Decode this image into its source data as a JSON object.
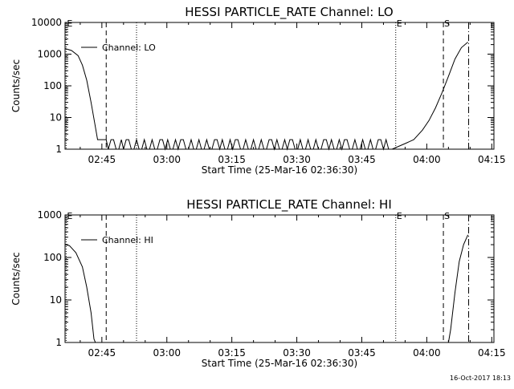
{
  "footer": {
    "timestamp": "16-Oct-2017 18:13"
  },
  "chart_data": [
    {
      "type": "line",
      "title": "HESSI PARTICLE_RATE Channel: LO",
      "xlabel": "Start Time (25-Mar-16 02:36:30)",
      "ylabel": "Counts/sec",
      "yscale": "log",
      "ylim": [
        1,
        10000
      ],
      "xlim": [
        "02:36:30",
        "04:15:30"
      ],
      "x_ticks": [
        "02:45",
        "03:00",
        "03:15",
        "03:30",
        "03:45",
        "04:00",
        "04:15"
      ],
      "y_ticks": [
        "1",
        "10",
        "100",
        "1000",
        "10000"
      ],
      "legend": {
        "label": "Channel: LO",
        "position": "top-left"
      },
      "markers": [
        {
          "label": "E",
          "time": "02:36:45",
          "style": "dotted"
        },
        {
          "label": "",
          "time": "02:46:00",
          "style": "dashed"
        },
        {
          "label": "",
          "time": "02:53:00",
          "style": "dotted"
        },
        {
          "label": "E",
          "time": "03:52:50",
          "style": "dotted"
        },
        {
          "label": "S",
          "time": "04:03:50",
          "style": "dashed"
        },
        {
          "label": "",
          "time": "04:09:40",
          "style": "dash-dot"
        }
      ],
      "series": [
        {
          "name": "Channel: LO",
          "points": [
            [
              "02:36:30",
              1500
            ],
            [
              "02:38:00",
              1300
            ],
            [
              "02:39:30",
              900
            ],
            [
              "02:40:30",
              450
            ],
            [
              "02:41:30",
              150
            ],
            [
              "02:42:30",
              30
            ],
            [
              "02:43:30",
              5
            ],
            [
              "02:44:00",
              2
            ],
            [
              "02:46:00",
              2
            ],
            [
              "02:46:30",
              1
            ],
            [
              "02:50:00",
              1
            ],
            [
              "03:52:00",
              1
            ],
            [
              "03:55:00",
              1.5
            ],
            [
              "03:57:00",
              2
            ],
            [
              "03:59:00",
              4
            ],
            [
              "04:00:30",
              8
            ],
            [
              "04:02:00",
              20
            ],
            [
              "04:03:30",
              60
            ],
            [
              "04:05:00",
              200
            ],
            [
              "04:06:30",
              700
            ],
            [
              "04:08:00",
              1600
            ],
            [
              "04:09:30",
              2400
            ]
          ]
        }
      ]
    },
    {
      "type": "line",
      "title": "HESSI PARTICLE_RATE Channel: HI",
      "xlabel": "Start Time (25-Mar-16 02:36:30)",
      "ylabel": "Counts/sec",
      "yscale": "log",
      "ylim": [
        1,
        1000
      ],
      "xlim": [
        "02:36:30",
        "04:15:30"
      ],
      "x_ticks": [
        "02:45",
        "03:00",
        "03:15",
        "03:30",
        "03:45",
        "04:00",
        "04:15"
      ],
      "y_ticks": [
        "1",
        "10",
        "100",
        "1000"
      ],
      "legend": {
        "label": "Channel: HI",
        "position": "top-left"
      },
      "markers": [
        {
          "label": "E",
          "time": "02:36:45",
          "style": "dotted"
        },
        {
          "label": "",
          "time": "02:46:00",
          "style": "dashed"
        },
        {
          "label": "",
          "time": "02:53:00",
          "style": "dotted"
        },
        {
          "label": "E",
          "time": "03:52:50",
          "style": "dotted"
        },
        {
          "label": "S",
          "time": "04:03:50",
          "style": "dashed"
        },
        {
          "label": "",
          "time": "04:09:40",
          "style": "dash-dot"
        }
      ],
      "series": [
        {
          "name": "Channel: HI",
          "points": [
            [
              "02:36:30",
              200
            ],
            [
              "02:37:30",
              190
            ],
            [
              "02:39:00",
              130
            ],
            [
              "02:40:30",
              60
            ],
            [
              "02:41:30",
              20
            ],
            [
              "02:42:30",
              5
            ],
            [
              "02:43:10",
              1.2
            ],
            [
              "02:43:30",
              1
            ],
            [
              "04:05:00",
              1
            ],
            [
              "04:05:30",
              2
            ],
            [
              "04:06:30",
              15
            ],
            [
              "04:07:30",
              80
            ],
            [
              "04:08:30",
              200
            ],
            [
              "04:09:30",
              340
            ]
          ]
        }
      ]
    }
  ]
}
